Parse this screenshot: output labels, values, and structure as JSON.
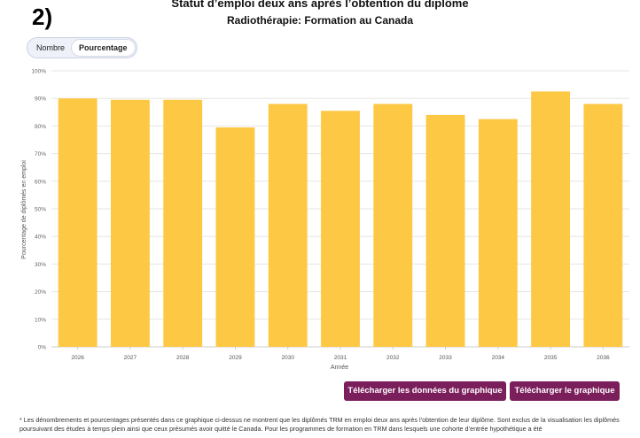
{
  "step_label": "2)",
  "toggle": {
    "option_count": "Nombre",
    "option_percent": "Pourcentage",
    "selected": "Pourcentage"
  },
  "buttons": {
    "download_data": "Télécharger les données du graphique",
    "download_chart": "Télécharger le graphique"
  },
  "footnote": "* Les dénombrements et pourcentages présentés dans ce graphique ci-dessus ne montrent que les diplômés TRM en emploi deux ans après l’obtention de leur diplôme. Sont exclus de la visualisation les diplômés poursuivant des études à temps plein ainsi que ceux présumés avoir quitté le Canada. Pour les programmes de formation en TRM dans lesquels une cohorte d’entrée hypothétique a été",
  "colors": {
    "bar": "#FDC844",
    "button": "#7A1F5C",
    "grid": "#E6E6E6"
  },
  "chart_data": {
    "type": "bar",
    "title": "Statut d’emploi deux ans après l’obtention du diplôme",
    "subtitle": "Radiothérapie: Formation au Canada",
    "xlabel": "Année",
    "ylabel": "Pourcentage de diplômés en emploi",
    "categories": [
      "2026",
      "2027",
      "2028",
      "2029",
      "2030",
      "2031",
      "2032",
      "2033",
      "2034",
      "2035",
      "2036"
    ],
    "values": [
      90,
      89.5,
      89.5,
      79.5,
      88,
      85.5,
      88,
      84,
      82.5,
      92.5,
      88
    ],
    "ylim": [
      0,
      100
    ],
    "yticks": [
      "0%",
      "10%",
      "20%",
      "30%",
      "40%",
      "50%",
      "60%",
      "70%",
      "80%",
      "90%",
      "100%"
    ],
    "grid": true,
    "legend": "none"
  }
}
